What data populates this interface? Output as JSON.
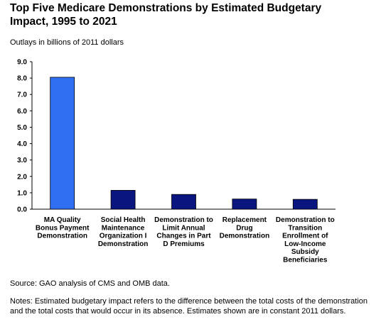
{
  "header": {
    "title_line1": "Top Five Medicare Demonstrations by Estimated Budgetary",
    "title_line2": "Impact, 1995 to 2021",
    "subtitle": "Outlays in billions of 2011 dollars"
  },
  "footer": {
    "source": "Source: GAO analysis of CMS and OMB data.",
    "notes": "Notes: Estimated budgetary impact refers to the difference between the total costs of the demonstration and the total costs that would occur in its absence. Estimates shown are in constant 2011 dollars."
  },
  "colors": {
    "highlight_bar": "#2f6ff2",
    "other_bars": "#0a1580"
  },
  "chart_data": {
    "type": "bar",
    "title": "Top Five Medicare Demonstrations by Estimated Budgetary Impact, 1995 to 2021",
    "ylabel": "Outlays in billions of 2011 dollars",
    "ylim": [
      0,
      9
    ],
    "yticks": [
      "0.0",
      "1.0",
      "2.0",
      "3.0",
      "4.0",
      "5.0",
      "6.0",
      "7.0",
      "8.0",
      "9.0"
    ],
    "grid": false,
    "categories": [
      [
        "MA Quality",
        "Bonus Payment",
        "Demonstration"
      ],
      [
        "Social Health",
        "Maintenance",
        "Organization I",
        "Demonstration"
      ],
      [
        "Demonstration to",
        "Limit Annual",
        "Changes in Part",
        "D Premiums"
      ],
      [
        "Replacement",
        "Drug",
        "Demonstration"
      ],
      [
        "Demonstration to",
        "Transition",
        "Enrollment of",
        "Low-Income",
        "Subsidy",
        "Beneficiaries"
      ]
    ],
    "values": [
      8.05,
      1.15,
      0.9,
      0.62,
      0.6
    ]
  }
}
